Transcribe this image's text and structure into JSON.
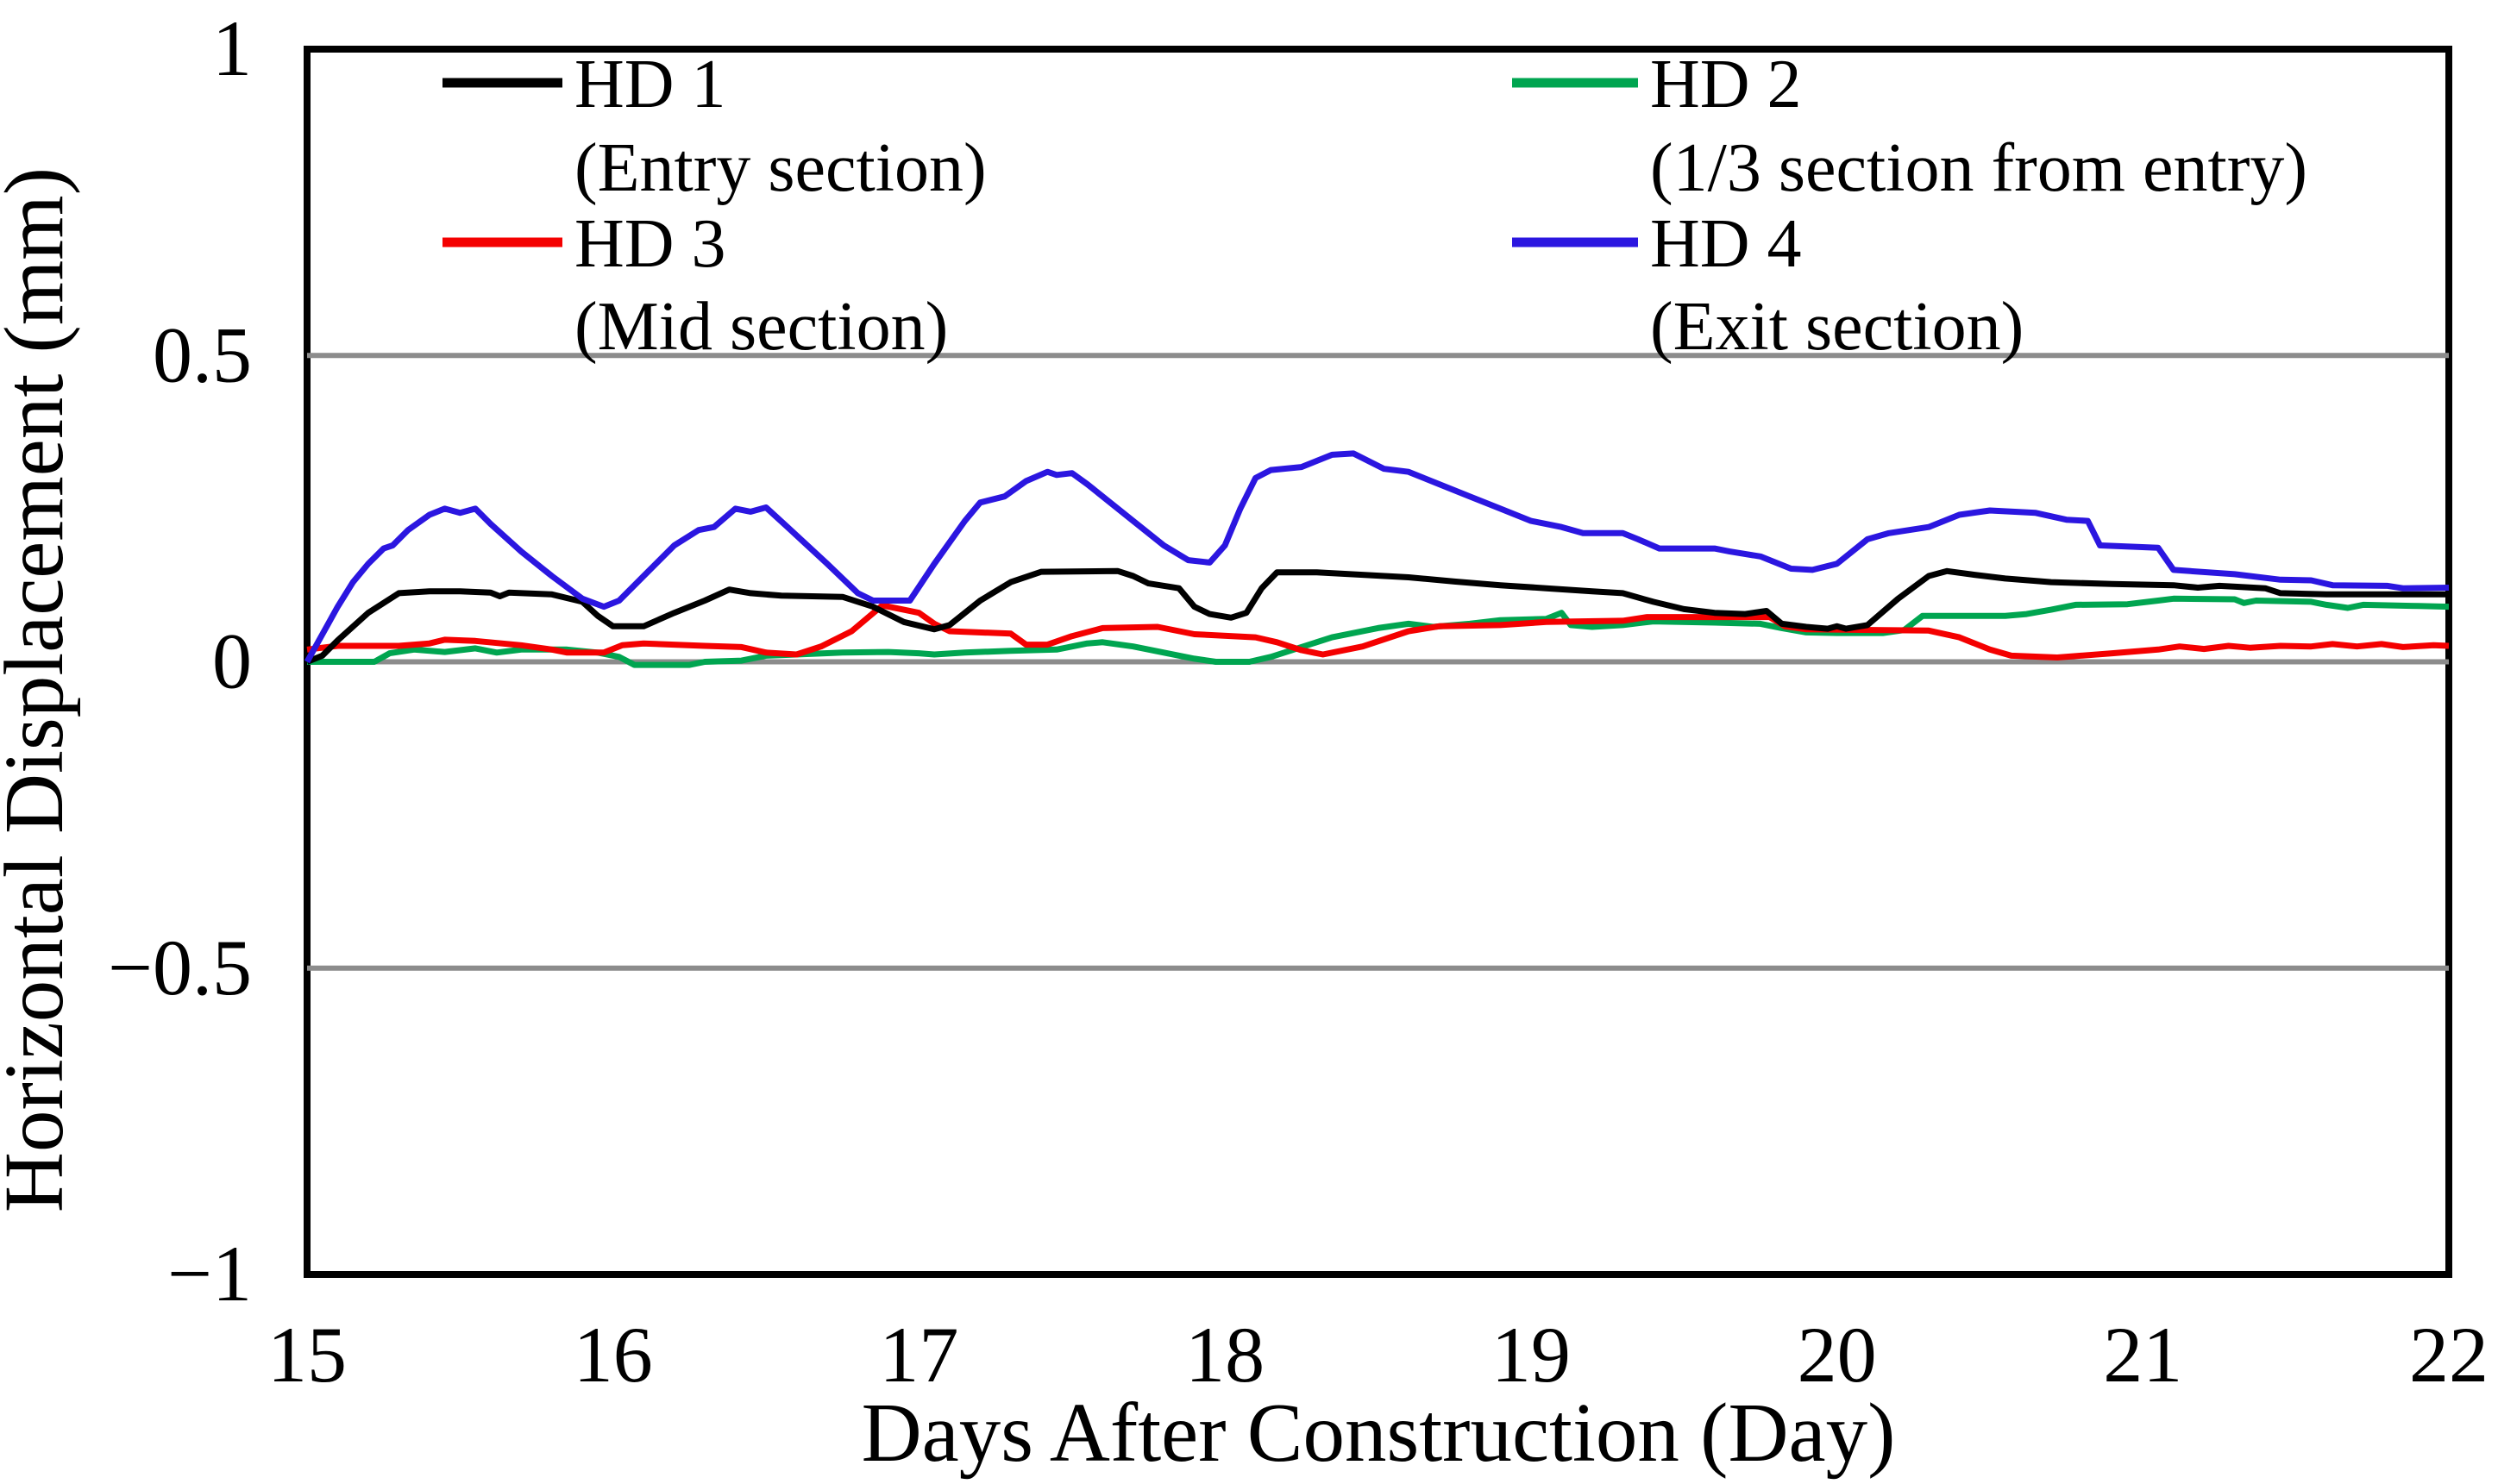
{
  "figure": {
    "background": "#ffffff",
    "axis_color": "#000000",
    "grid_color": "#8c8c8c"
  },
  "chart_data": {
    "type": "line",
    "title": "",
    "xlabel": "Days After Construction (Day)",
    "ylabel": "Horizontal Displacement (mm)",
    "xlim": [
      15,
      22
    ],
    "ylim": [
      -1,
      1
    ],
    "xticks": [
      "15",
      "16",
      "17",
      "18",
      "19",
      "20",
      "21",
      "22"
    ],
    "xtick_values": [
      15,
      16,
      17,
      18,
      19,
      20,
      21,
      22
    ],
    "yticks": [
      "1",
      "0.5",
      "0",
      "−0.5",
      "−1"
    ],
    "ytick_values": [
      1,
      0.5,
      0,
      -0.5,
      -1
    ],
    "grid_values": [
      0.5,
      0,
      -0.5
    ],
    "grid": true,
    "legend_position": "inside-top, two columns",
    "series": [
      {
        "name": "HD 1",
        "section": "(Entry section)",
        "color": "#000000",
        "points": [
          [
            15,
            0
          ],
          [
            15.05,
            0.01
          ],
          [
            15.1,
            0.035
          ],
          [
            15.2,
            0.08
          ],
          [
            15.3,
            0.112
          ],
          [
            15.4,
            0.115
          ],
          [
            15.5,
            0.115
          ],
          [
            15.6,
            0.113
          ],
          [
            15.63,
            0.107
          ],
          [
            15.66,
            0.113
          ],
          [
            15.8,
            0.11
          ],
          [
            15.9,
            0.098
          ],
          [
            15.95,
            0.075
          ],
          [
            16,
            0.058
          ],
          [
            16.1,
            0.058
          ],
          [
            16.2,
            0.08
          ],
          [
            16.3,
            0.1
          ],
          [
            16.38,
            0.118
          ],
          [
            16.45,
            0.112
          ],
          [
            16.55,
            0.108
          ],
          [
            16.75,
            0.106
          ],
          [
            16.85,
            0.09
          ],
          [
            16.95,
            0.065
          ],
          [
            17.05,
            0.053
          ],
          [
            17.1,
            0.06
          ],
          [
            17.2,
            0.1
          ],
          [
            17.3,
            0.13
          ],
          [
            17.4,
            0.147
          ],
          [
            17.65,
            0.148
          ],
          [
            17.7,
            0.14
          ],
          [
            17.75,
            0.128
          ],
          [
            17.85,
            0.12
          ],
          [
            17.9,
            0.09
          ],
          [
            17.95,
            0.078
          ],
          [
            18.02,
            0.072
          ],
          [
            18.07,
            0.08
          ],
          [
            18.12,
            0.12
          ],
          [
            18.17,
            0.146
          ],
          [
            18.3,
            0.146
          ],
          [
            18.45,
            0.142
          ],
          [
            18.6,
            0.138
          ],
          [
            18.75,
            0.131
          ],
          [
            18.9,
            0.125
          ],
          [
            19.05,
            0.12
          ],
          [
            19.2,
            0.115
          ],
          [
            19.3,
            0.112
          ],
          [
            19.4,
            0.098
          ],
          [
            19.5,
            0.086
          ],
          [
            19.6,
            0.08
          ],
          [
            19.7,
            0.078
          ],
          [
            19.77,
            0.083
          ],
          [
            19.82,
            0.062
          ],
          [
            19.9,
            0.057
          ],
          [
            19.97,
            0.054
          ],
          [
            20,
            0.058
          ],
          [
            20.03,
            0.054
          ],
          [
            20.1,
            0.06
          ],
          [
            20.2,
            0.103
          ],
          [
            20.3,
            0.14
          ],
          [
            20.36,
            0.148
          ],
          [
            20.45,
            0.142
          ],
          [
            20.55,
            0.136
          ],
          [
            20.7,
            0.13
          ],
          [
            20.9,
            0.127
          ],
          [
            21.1,
            0.125
          ],
          [
            21.18,
            0.121
          ],
          [
            21.25,
            0.124
          ],
          [
            21.4,
            0.12
          ],
          [
            21.45,
            0.112
          ],
          [
            21.6,
            0.11
          ],
          [
            22,
            0.11
          ]
        ]
      },
      {
        "name": "HD 2",
        "section": "(1/3 section from entry)",
        "color": "#00a550",
        "points": [
          [
            15,
            0
          ],
          [
            15.22,
            0
          ],
          [
            15.27,
            0.014
          ],
          [
            15.35,
            0.02
          ],
          [
            15.45,
            0.016
          ],
          [
            15.55,
            0.022
          ],
          [
            15.62,
            0.015
          ],
          [
            15.7,
            0.02
          ],
          [
            15.85,
            0.02
          ],
          [
            15.95,
            0.015
          ],
          [
            16.02,
            0.008
          ],
          [
            16.07,
            -0.005
          ],
          [
            16.25,
            -0.005
          ],
          [
            16.3,
            0
          ],
          [
            16.42,
            0.002
          ],
          [
            16.5,
            0.01
          ],
          [
            16.6,
            0.012
          ],
          [
            16.75,
            0.015
          ],
          [
            16.9,
            0.016
          ],
          [
            17,
            0.014
          ],
          [
            17.05,
            0.012
          ],
          [
            17.15,
            0.015
          ],
          [
            17.3,
            0.018
          ],
          [
            17.45,
            0.02
          ],
          [
            17.55,
            0.03
          ],
          [
            17.6,
            0.032
          ],
          [
            17.7,
            0.025
          ],
          [
            17.8,
            0.015
          ],
          [
            17.9,
            0.005
          ],
          [
            17.97,
            0
          ],
          [
            18.08,
            0
          ],
          [
            18.15,
            0.008
          ],
          [
            18.25,
            0.024
          ],
          [
            18.35,
            0.04
          ],
          [
            18.5,
            0.055
          ],
          [
            18.6,
            0.062
          ],
          [
            18.68,
            0.057
          ],
          [
            18.8,
            0.062
          ],
          [
            18.9,
            0.068
          ],
          [
            19.05,
            0.07
          ],
          [
            19.1,
            0.08
          ],
          [
            19.13,
            0.06
          ],
          [
            19.2,
            0.057
          ],
          [
            19.3,
            0.06
          ],
          [
            19.4,
            0.066
          ],
          [
            19.6,
            0.064
          ],
          [
            19.75,
            0.062
          ],
          [
            19.82,
            0.055
          ],
          [
            19.9,
            0.048
          ],
          [
            20,
            0.047
          ],
          [
            20.15,
            0.047
          ],
          [
            20.22,
            0.052
          ],
          [
            20.28,
            0.075
          ],
          [
            20.55,
            0.075
          ],
          [
            20.62,
            0.078
          ],
          [
            20.7,
            0.085
          ],
          [
            20.78,
            0.093
          ],
          [
            20.95,
            0.094
          ],
          [
            21.05,
            0.1
          ],
          [
            21.1,
            0.103
          ],
          [
            21.3,
            0.102
          ],
          [
            21.33,
            0.096
          ],
          [
            21.37,
            0.1
          ],
          [
            21.55,
            0.098
          ],
          [
            21.6,
            0.093
          ],
          [
            21.67,
            0.088
          ],
          [
            21.72,
            0.093
          ],
          [
            21.9,
            0.091
          ],
          [
            22,
            0.09
          ]
        ]
      },
      {
        "name": "HD 3",
        "section": "(Mid section)",
        "color": "#f40000",
        "points": [
          [
            15,
            0.02
          ],
          [
            15.1,
            0.026
          ],
          [
            15.3,
            0.026
          ],
          [
            15.4,
            0.03
          ],
          [
            15.45,
            0.036
          ],
          [
            15.55,
            0.034
          ],
          [
            15.7,
            0.027
          ],
          [
            15.8,
            0.02
          ],
          [
            15.85,
            0.015
          ],
          [
            15.97,
            0.015
          ],
          [
            16.03,
            0.027
          ],
          [
            16.1,
            0.03
          ],
          [
            16.3,
            0.026
          ],
          [
            16.42,
            0.024
          ],
          [
            16.5,
            0.015
          ],
          [
            16.6,
            0.012
          ],
          [
            16.68,
            0.025
          ],
          [
            16.78,
            0.05
          ],
          [
            16.88,
            0.092
          ],
          [
            16.95,
            0.085
          ],
          [
            17,
            0.08
          ],
          [
            17.05,
            0.062
          ],
          [
            17.1,
            0.05
          ],
          [
            17.3,
            0.046
          ],
          [
            17.35,
            0.028
          ],
          [
            17.42,
            0.028
          ],
          [
            17.5,
            0.042
          ],
          [
            17.6,
            0.055
          ],
          [
            17.78,
            0.057
          ],
          [
            17.9,
            0.045
          ],
          [
            18.1,
            0.04
          ],
          [
            18.17,
            0.032
          ],
          [
            18.25,
            0.019
          ],
          [
            18.32,
            0.012
          ],
          [
            18.45,
            0.025
          ],
          [
            18.6,
            0.05
          ],
          [
            18.7,
            0.058
          ],
          [
            18.9,
            0.06
          ],
          [
            19.05,
            0.065
          ],
          [
            19.3,
            0.067
          ],
          [
            19.38,
            0.073
          ],
          [
            19.78,
            0.073
          ],
          [
            19.83,
            0.058
          ],
          [
            19.9,
            0.053
          ],
          [
            20.3,
            0.051
          ],
          [
            20.4,
            0.04
          ],
          [
            20.5,
            0.02
          ],
          [
            20.57,
            0.01
          ],
          [
            20.72,
            0.007
          ],
          [
            20.9,
            0.014
          ],
          [
            21.05,
            0.02
          ],
          [
            21.12,
            0.025
          ],
          [
            21.2,
            0.021
          ],
          [
            21.28,
            0.026
          ],
          [
            21.35,
            0.023
          ],
          [
            21.45,
            0.026
          ],
          [
            21.55,
            0.025
          ],
          [
            21.62,
            0.029
          ],
          [
            21.7,
            0.025
          ],
          [
            21.78,
            0.029
          ],
          [
            21.85,
            0.024
          ],
          [
            21.95,
            0.027
          ],
          [
            22,
            0.026
          ]
        ]
      },
      {
        "name": "HD 4",
        "section": "(Exit section)",
        "color": "#2b16e0",
        "points": [
          [
            15,
            0
          ],
          [
            15.1,
            0.09
          ],
          [
            15.15,
            0.13
          ],
          [
            15.2,
            0.16
          ],
          [
            15.25,
            0.185
          ],
          [
            15.28,
            0.19
          ],
          [
            15.33,
            0.215
          ],
          [
            15.4,
            0.24
          ],
          [
            15.45,
            0.25
          ],
          [
            15.5,
            0.243
          ],
          [
            15.55,
            0.25
          ],
          [
            15.6,
            0.225
          ],
          [
            15.7,
            0.18
          ],
          [
            15.8,
            0.14
          ],
          [
            15.9,
            0.103
          ],
          [
            15.97,
            0.09
          ],
          [
            16.02,
            0.1
          ],
          [
            16.1,
            0.14
          ],
          [
            16.2,
            0.19
          ],
          [
            16.28,
            0.215
          ],
          [
            16.33,
            0.22
          ],
          [
            16.4,
            0.25
          ],
          [
            16.45,
            0.245
          ],
          [
            16.5,
            0.252
          ],
          [
            16.57,
            0.22
          ],
          [
            16.7,
            0.16
          ],
          [
            16.8,
            0.112
          ],
          [
            16.85,
            0.1
          ],
          [
            16.97,
            0.1
          ],
          [
            17.05,
            0.16
          ],
          [
            17.15,
            0.23
          ],
          [
            17.2,
            0.26
          ],
          [
            17.28,
            0.27
          ],
          [
            17.35,
            0.295
          ],
          [
            17.42,
            0.31
          ],
          [
            17.45,
            0.305
          ],
          [
            17.5,
            0.308
          ],
          [
            17.55,
            0.29
          ],
          [
            17.7,
            0.23
          ],
          [
            17.8,
            0.19
          ],
          [
            17.88,
            0.166
          ],
          [
            17.95,
            0.162
          ],
          [
            18,
            0.19
          ],
          [
            18.05,
            0.25
          ],
          [
            18.1,
            0.3
          ],
          [
            18.15,
            0.313
          ],
          [
            18.25,
            0.318
          ],
          [
            18.35,
            0.338
          ],
          [
            18.42,
            0.34
          ],
          [
            18.48,
            0.325
          ],
          [
            18.52,
            0.315
          ],
          [
            18.6,
            0.31
          ],
          [
            18.7,
            0.29
          ],
          [
            18.8,
            0.27
          ],
          [
            18.9,
            0.25
          ],
          [
            19,
            0.23
          ],
          [
            19.1,
            0.22
          ],
          [
            19.17,
            0.21
          ],
          [
            19.3,
            0.21
          ],
          [
            19.35,
            0.2
          ],
          [
            19.42,
            0.185
          ],
          [
            19.6,
            0.185
          ],
          [
            19.65,
            0.18
          ],
          [
            19.75,
            0.172
          ],
          [
            19.85,
            0.152
          ],
          [
            19.92,
            0.15
          ],
          [
            20,
            0.16
          ],
          [
            20.1,
            0.2
          ],
          [
            20.17,
            0.21
          ],
          [
            20.3,
            0.22
          ],
          [
            20.4,
            0.24
          ],
          [
            20.5,
            0.247
          ],
          [
            20.65,
            0.243
          ],
          [
            20.75,
            0.232
          ],
          [
            20.82,
            0.23
          ],
          [
            20.86,
            0.19
          ],
          [
            21.05,
            0.186
          ],
          [
            21.1,
            0.15
          ],
          [
            21.3,
            0.143
          ],
          [
            21.45,
            0.134
          ],
          [
            21.55,
            0.133
          ],
          [
            21.62,
            0.125
          ],
          [
            21.8,
            0.124
          ],
          [
            21.85,
            0.12
          ],
          [
            22,
            0.121
          ]
        ]
      }
    ]
  }
}
